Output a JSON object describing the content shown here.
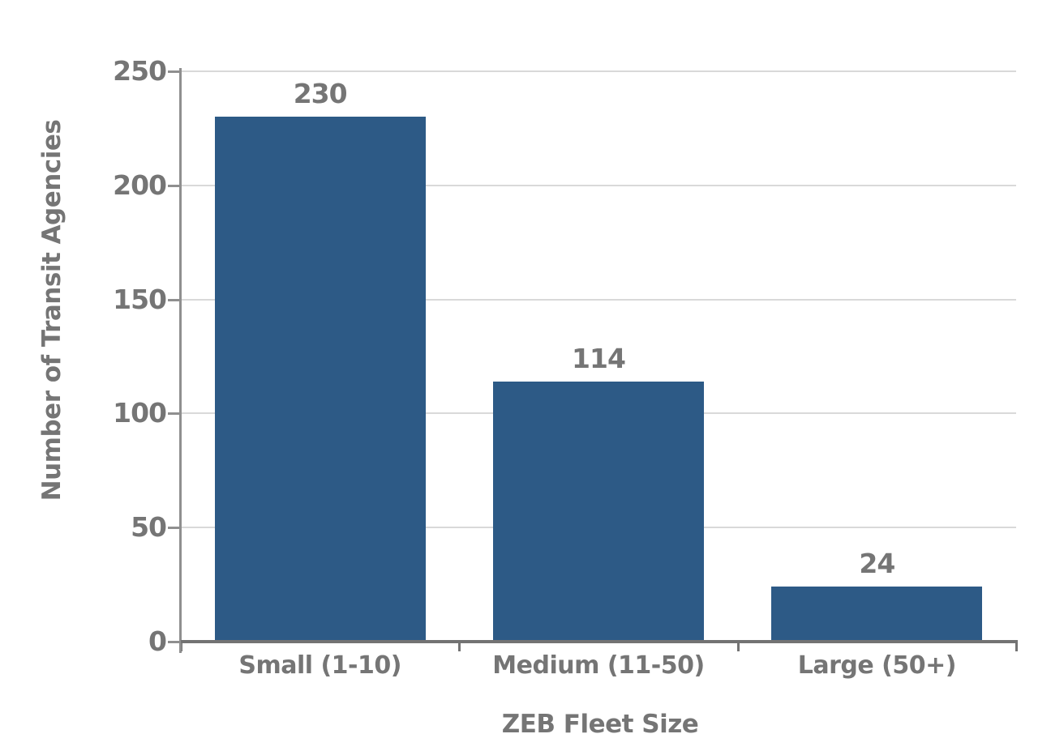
{
  "chart_data": {
    "type": "bar",
    "categories": [
      "Small (1-10)",
      "Medium (11-50)",
      "Large (50+)"
    ],
    "values": [
      230,
      114,
      24
    ],
    "title": "",
    "xlabel": "ZEB Fleet Size",
    "ylabel": "Number of Transit Agencies",
    "ylim": [
      0,
      250
    ],
    "yticks": [
      0,
      50,
      100,
      150,
      200,
      250
    ],
    "grid": true,
    "legend": false,
    "colors": {
      "bar": "#2d5a86",
      "label_text": "#757575",
      "gridline": "#d9d9d9",
      "y_axis": "#8f8f8f",
      "x_axis": "#737373",
      "background": "#ffffff"
    }
  }
}
